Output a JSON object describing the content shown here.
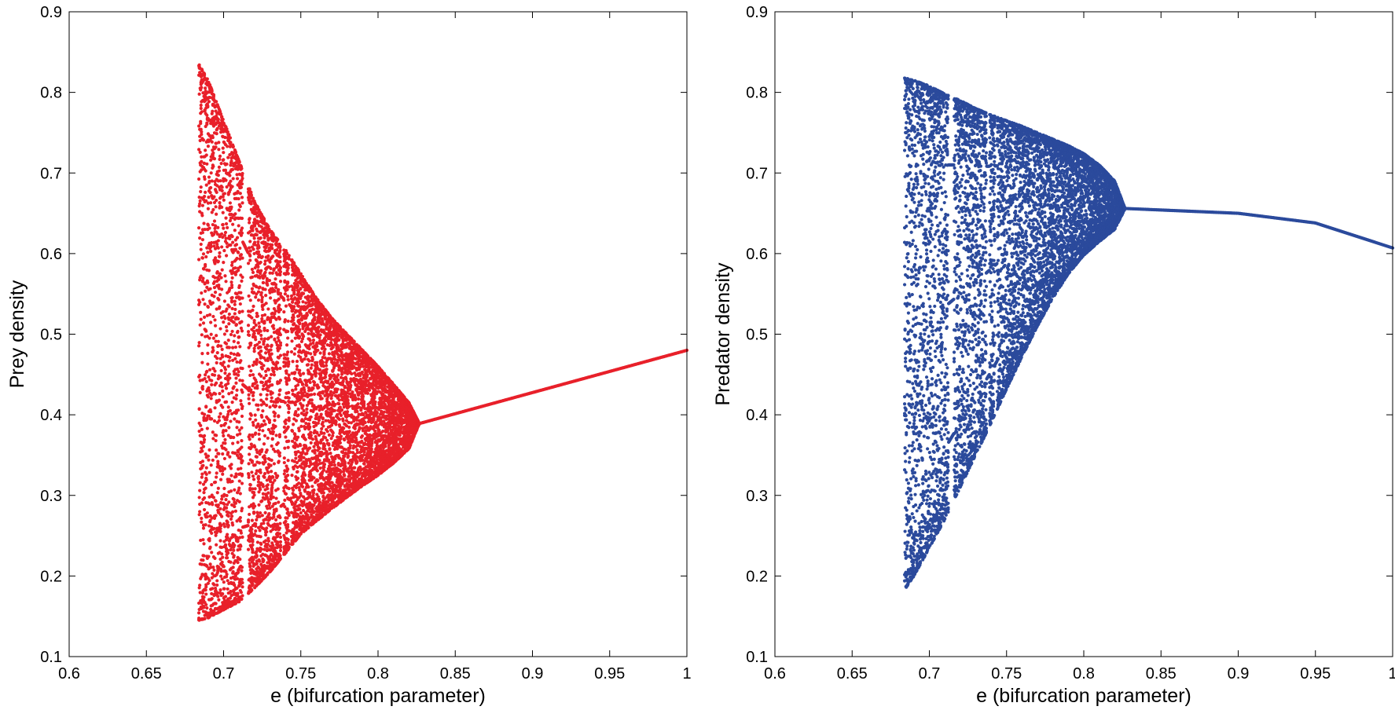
{
  "chart_data": [
    {
      "type": "scatter",
      "title": "",
      "xlabel": "e (bifurcation parameter)",
      "ylabel": "Prey density",
      "xlim": [
        0.6,
        1.0
      ],
      "ylim": [
        0.1,
        0.9
      ],
      "xticks": [
        "0.6",
        "0.65",
        "0.7",
        "0.75",
        "0.8",
        "0.85",
        "0.9",
        "0.95",
        "1"
      ],
      "yticks": [
        "0.1",
        "0.2",
        "0.3",
        "0.4",
        "0.5",
        "0.6",
        "0.7",
        "0.8",
        "0.9"
      ],
      "color": "#e8202a",
      "grid": false,
      "box": true,
      "chaotic_region": {
        "e_start": 0.684,
        "e_end": 0.8265,
        "envelope": [
          {
            "e": 0.684,
            "min": 0.145,
            "max": 0.835
          },
          {
            "e": 0.69,
            "min": 0.148,
            "max": 0.815
          },
          {
            "e": 0.7,
            "min": 0.158,
            "max": 0.765
          },
          {
            "e": 0.71,
            "min": 0.168,
            "max": 0.715
          },
          {
            "e": 0.72,
            "min": 0.185,
            "max": 0.665
          },
          {
            "e": 0.73,
            "min": 0.205,
            "max": 0.63
          },
          {
            "e": 0.74,
            "min": 0.228,
            "max": 0.605
          },
          {
            "e": 0.75,
            "min": 0.252,
            "max": 0.575
          },
          {
            "e": 0.76,
            "min": 0.268,
            "max": 0.545
          },
          {
            "e": 0.77,
            "min": 0.283,
            "max": 0.52
          },
          {
            "e": 0.78,
            "min": 0.298,
            "max": 0.5
          },
          {
            "e": 0.79,
            "min": 0.312,
            "max": 0.48
          },
          {
            "e": 0.8,
            "min": 0.325,
            "max": 0.46
          },
          {
            "e": 0.81,
            "min": 0.34,
            "max": 0.438
          },
          {
            "e": 0.82,
            "min": 0.358,
            "max": 0.415
          },
          {
            "e": 0.8265,
            "min": 0.388,
            "max": 0.39
          }
        ],
        "windows": [
          [
            0.7125,
            0.716
          ],
          [
            0.737,
            0.739
          ],
          [
            0.7425,
            0.744
          ]
        ]
      },
      "fixed_point_branch": [
        {
          "e": 0.8265,
          "y": 0.389
        },
        {
          "e": 1.0,
          "y": 0.48
        }
      ]
    },
    {
      "type": "scatter",
      "title": "",
      "xlabel": "e (bifurcation parameter)",
      "ylabel": "Predator density",
      "xlim": [
        0.6,
        1.0
      ],
      "ylim": [
        0.1,
        0.9
      ],
      "xticks": [
        "0.6",
        "0.65",
        "0.7",
        "0.75",
        "0.8",
        "0.85",
        "0.9",
        "0.95",
        "1"
      ],
      "yticks": [
        "0.1",
        "0.2",
        "0.3",
        "0.4",
        "0.5",
        "0.6",
        "0.7",
        "0.8",
        "0.9"
      ],
      "color": "#2b4a9c",
      "grid": false,
      "box": true,
      "chaotic_region": {
        "e_start": 0.684,
        "e_end": 0.8265,
        "envelope": [
          {
            "e": 0.684,
            "min": 0.183,
            "max": 0.818
          },
          {
            "e": 0.69,
            "min": 0.2,
            "max": 0.815
          },
          {
            "e": 0.7,
            "min": 0.235,
            "max": 0.808
          },
          {
            "e": 0.71,
            "min": 0.27,
            "max": 0.798
          },
          {
            "e": 0.72,
            "min": 0.31,
            "max": 0.79
          },
          {
            "e": 0.73,
            "min": 0.35,
            "max": 0.78
          },
          {
            "e": 0.74,
            "min": 0.39,
            "max": 0.772
          },
          {
            "e": 0.75,
            "min": 0.432,
            "max": 0.765
          },
          {
            "e": 0.76,
            "min": 0.472,
            "max": 0.758
          },
          {
            "e": 0.77,
            "min": 0.51,
            "max": 0.75
          },
          {
            "e": 0.78,
            "min": 0.545,
            "max": 0.742
          },
          {
            "e": 0.79,
            "min": 0.575,
            "max": 0.734
          },
          {
            "e": 0.8,
            "min": 0.598,
            "max": 0.724
          },
          {
            "e": 0.81,
            "min": 0.615,
            "max": 0.71
          },
          {
            "e": 0.82,
            "min": 0.63,
            "max": 0.69
          },
          {
            "e": 0.8265,
            "min": 0.655,
            "max": 0.657
          }
        ],
        "windows": [
          [
            0.7125,
            0.716
          ],
          [
            0.737,
            0.739
          ],
          [
            0.7425,
            0.744
          ]
        ]
      },
      "fixed_point_branch": [
        {
          "e": 0.8265,
          "y": 0.656
        },
        {
          "e": 0.9,
          "y": 0.65
        },
        {
          "e": 0.95,
          "y": 0.638
        },
        {
          "e": 1.0,
          "y": 0.607
        }
      ]
    }
  ]
}
